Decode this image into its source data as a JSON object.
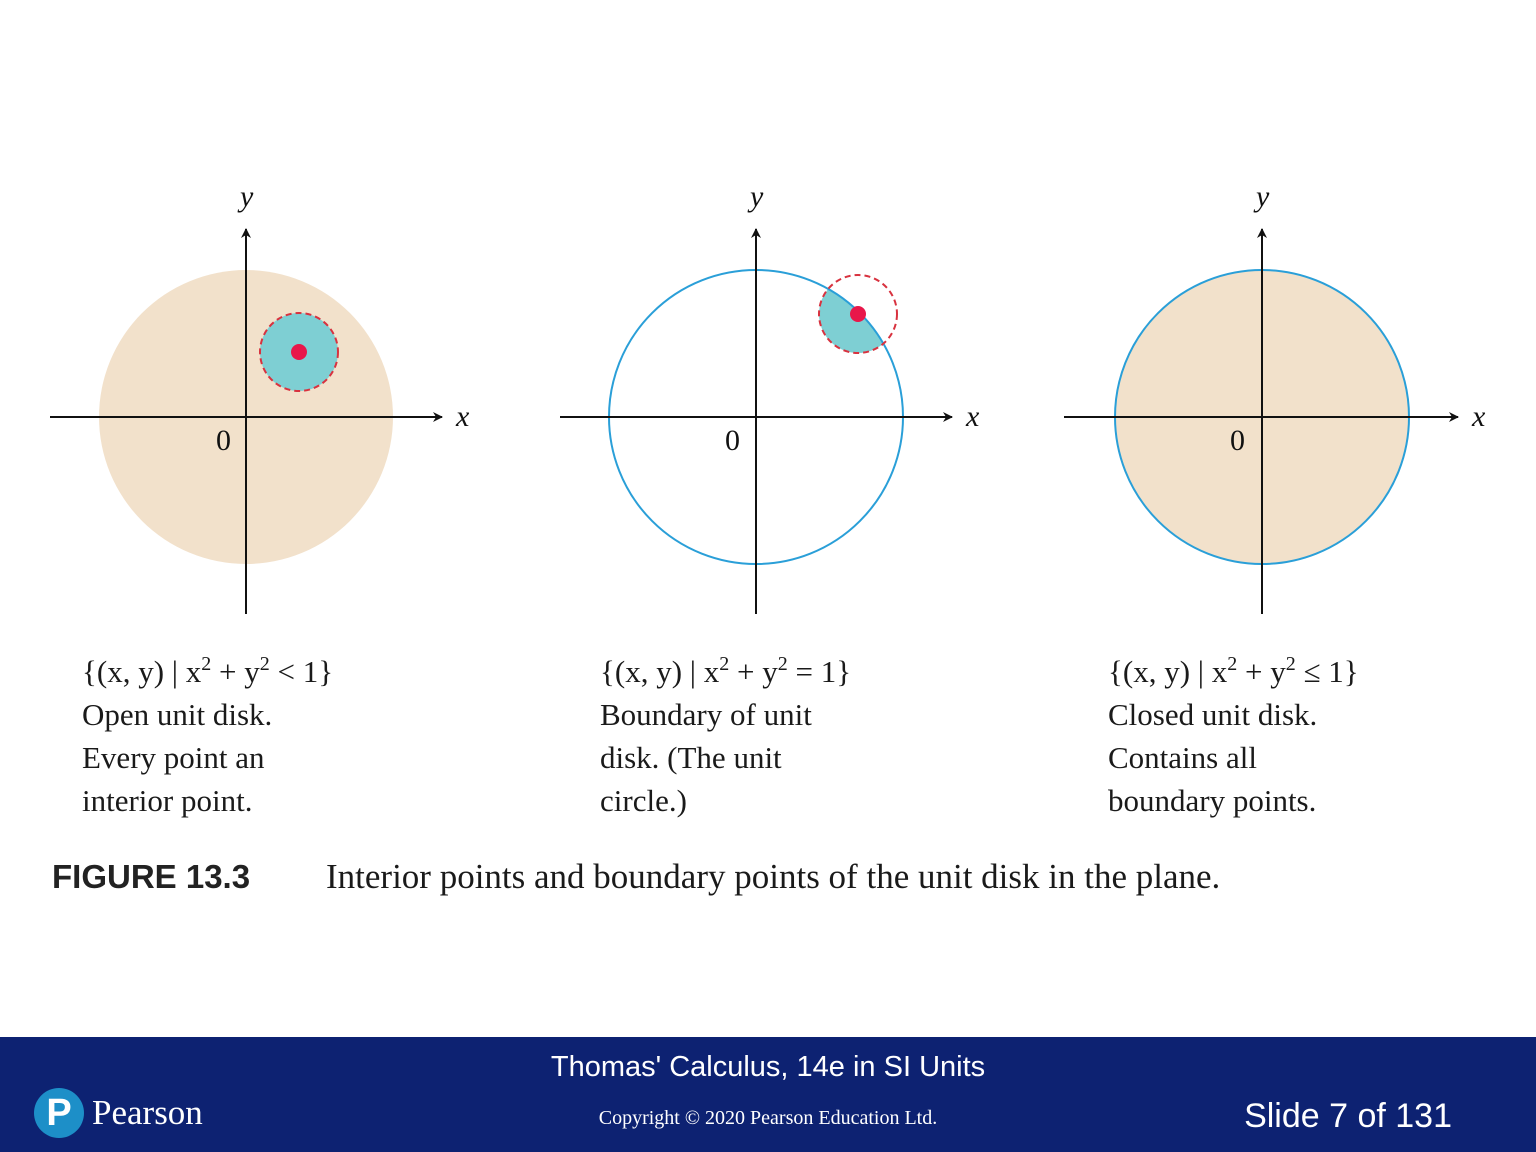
{
  "panels": [
    {
      "formula": {
        "prefix": "{(x, y) | x",
        "mid": " + y",
        "suffix": " < 1}",
        "exp": "2"
      },
      "description": "Open unit disk. Every point an interior point.",
      "kind": "open"
    },
    {
      "formula": {
        "prefix": "{(x, y) | x",
        "mid": " + y",
        "suffix": " = 1}",
        "exp": "2"
      },
      "description": "Boundary of unit disk. (The unit circle.)",
      "kind": "boundary"
    },
    {
      "formula": {
        "prefix": "{(x, y) | x",
        "mid": " + y",
        "suffix": " ≤ 1}",
        "exp": "2"
      },
      "description": "Closed unit disk. Contains all boundary points.",
      "kind": "closed"
    }
  ],
  "axis_labels": {
    "x": "x",
    "y": "y",
    "origin": "0"
  },
  "figure": {
    "label": "FIGURE 13.3",
    "title": "Interior points and boundary points of the unit disk in the plane."
  },
  "footer": {
    "book": "Thomas' Calculus, 14e in SI Units",
    "copyright": "Copyright © 2020 Pearson Education Ltd.",
    "slide": "Slide 7 of 131",
    "brand": "Pearson",
    "logo_letter": "P"
  },
  "colors": {
    "disk_fill": "#f2e1cb",
    "circle_stroke": "#2a9fd8",
    "neighborhood_fill": "#7ecfd3",
    "point": "#e8174a",
    "footer_bg": "#0d2272",
    "logo": "#1d8fc8"
  }
}
